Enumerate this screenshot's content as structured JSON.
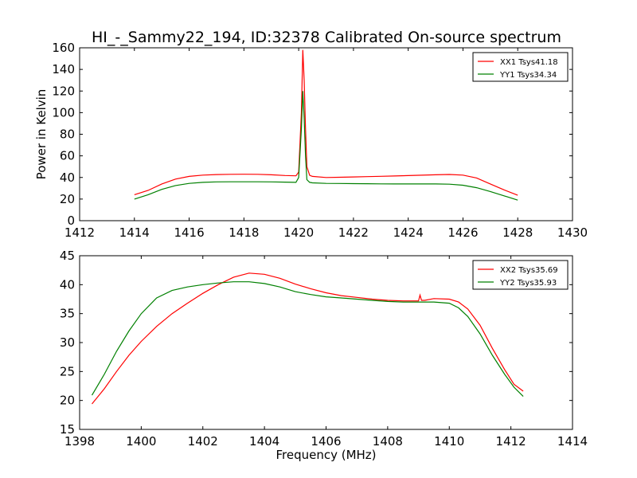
{
  "figure": {
    "title": "HI_-_Sammy22_194, ID:32378 Calibrated On-source spectrum"
  },
  "chart_data": [
    {
      "type": "line",
      "title": "HI_-_Sammy22_194, ID:32378 Calibrated On-source spectrum",
      "xlabel": "",
      "ylabel": "Power in Kelvin",
      "xlim": [
        1412,
        1430
      ],
      "ylim": [
        0,
        160
      ],
      "xticks": [
        1412,
        1414,
        1416,
        1418,
        1420,
        1422,
        1424,
        1426,
        1428,
        1430
      ],
      "yticks": [
        0,
        20,
        40,
        60,
        80,
        100,
        120,
        140,
        160
      ],
      "grid": false,
      "legend_position": "top-right",
      "series": [
        {
          "name": "XX1 Tsys41.18",
          "color": "#ff0000",
          "x": [
            1414.0,
            1414.5,
            1415.0,
            1415.5,
            1416.0,
            1416.5,
            1417.0,
            1417.5,
            1418.0,
            1418.5,
            1419.0,
            1419.5,
            1419.9,
            1420.0,
            1420.1,
            1420.15,
            1420.2,
            1420.25,
            1420.3,
            1420.4,
            1420.5,
            1421.0,
            1421.5,
            1422.0,
            1422.5,
            1423.0,
            1423.5,
            1424.0,
            1424.5,
            1425.0,
            1425.5,
            1426.0,
            1426.5,
            1427.0,
            1427.5,
            1428.0
          ],
          "y": [
            24,
            28,
            34,
            38.5,
            41,
            42.2,
            42.7,
            42.9,
            43,
            42.9,
            42.5,
            41.8,
            41.5,
            45,
            100,
            158,
            130,
            85,
            50,
            42,
            41,
            40,
            40.2,
            40.5,
            40.8,
            41.1,
            41.4,
            41.7,
            42.1,
            42.5,
            42.8,
            42.2,
            39.5,
            34,
            28.5,
            23.5
          ]
        },
        {
          "name": "YY1 Tsys34.34",
          "color": "#008000",
          "x": [
            1414.0,
            1414.5,
            1415.0,
            1415.5,
            1416.0,
            1416.5,
            1417.0,
            1417.5,
            1418.0,
            1418.5,
            1419.0,
            1419.5,
            1419.9,
            1420.0,
            1420.1,
            1420.15,
            1420.2,
            1420.25,
            1420.3,
            1420.4,
            1420.5,
            1421.0,
            1421.5,
            1422.0,
            1422.5,
            1423.0,
            1423.5,
            1424.0,
            1424.5,
            1425.0,
            1425.5,
            1426.0,
            1426.5,
            1427.0,
            1427.5,
            1428.0
          ],
          "y": [
            20,
            24,
            29,
            32.5,
            34.5,
            35.5,
            35.9,
            36,
            36,
            36,
            35.9,
            35.7,
            35.5,
            40,
            85,
            120,
            95,
            60,
            38,
            35.5,
            35,
            34.5,
            34.4,
            34.3,
            34.2,
            34.1,
            34,
            34,
            34,
            34,
            33.8,
            32.8,
            30.5,
            27,
            23,
            19
          ]
        }
      ]
    },
    {
      "type": "line",
      "title": "",
      "xlabel": "Frequency (MHz)",
      "ylabel": "",
      "xlim": [
        1398,
        1414
      ],
      "ylim": [
        15,
        45
      ],
      "xticks": [
        1398,
        1400,
        1402,
        1404,
        1406,
        1408,
        1410,
        1412,
        1414
      ],
      "yticks": [
        15,
        20,
        25,
        30,
        35,
        40,
        45
      ],
      "grid": false,
      "legend_position": "top-right",
      "series": [
        {
          "name": "XX2 Tsys35.69",
          "color": "#ff0000",
          "x": [
            1398.4,
            1398.8,
            1399.2,
            1399.6,
            1400.0,
            1400.5,
            1401.0,
            1401.5,
            1402.0,
            1402.5,
            1403.0,
            1403.5,
            1404.0,
            1404.5,
            1405.0,
            1405.5,
            1406.0,
            1406.5,
            1407.0,
            1407.5,
            1408.0,
            1408.5,
            1409.0,
            1409.05,
            1409.1,
            1409.2,
            1409.5,
            1410.0,
            1410.3,
            1410.6,
            1411.0,
            1411.4,
            1411.8,
            1412.1,
            1412.4
          ],
          "y": [
            19.4,
            22,
            25,
            27.8,
            30.2,
            32.8,
            35,
            36.8,
            38.5,
            40,
            41.3,
            42,
            41.8,
            41.1,
            40.1,
            39.3,
            38.6,
            38.1,
            37.8,
            37.5,
            37.3,
            37.2,
            37.2,
            38.2,
            37.3,
            37.3,
            37.6,
            37.5,
            37,
            35.8,
            33,
            29,
            25.3,
            22.8,
            21.6
          ]
        },
        {
          "name": "YY2 Tsys35.93",
          "color": "#008000",
          "x": [
            1398.4,
            1398.8,
            1399.2,
            1399.6,
            1400.0,
            1400.5,
            1401.0,
            1401.5,
            1402.0,
            1402.5,
            1403.0,
            1403.5,
            1404.0,
            1404.5,
            1405.0,
            1405.5,
            1406.0,
            1406.5,
            1407.0,
            1407.5,
            1408.0,
            1408.5,
            1409.0,
            1409.5,
            1410.0,
            1410.3,
            1410.6,
            1411.0,
            1411.4,
            1411.8,
            1412.1,
            1412.4
          ],
          "y": [
            20.9,
            24.5,
            28.5,
            32,
            35,
            37.7,
            39,
            39.6,
            40,
            40.3,
            40.5,
            40.5,
            40.2,
            39.6,
            38.8,
            38.3,
            37.9,
            37.7,
            37.5,
            37.3,
            37.1,
            37,
            37,
            37,
            36.8,
            36,
            34.5,
            31.5,
            27.8,
            24.5,
            22.3,
            20.7
          ]
        }
      ]
    }
  ]
}
